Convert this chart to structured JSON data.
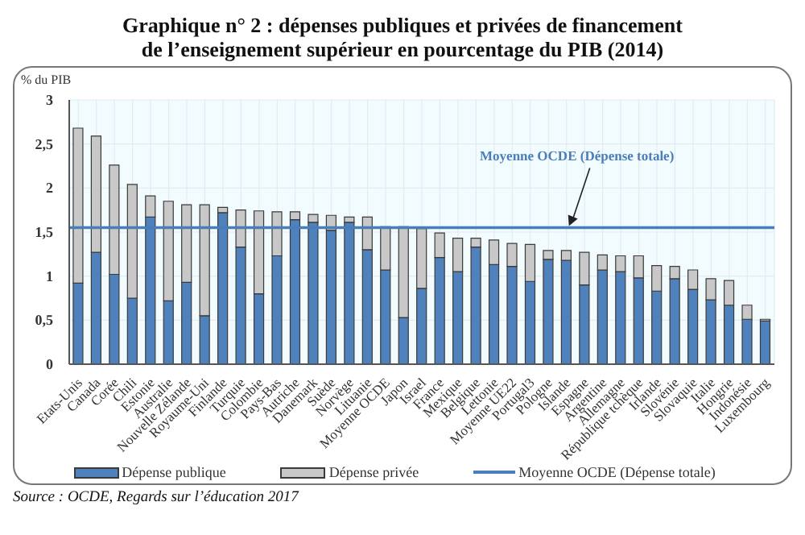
{
  "chart_data": {
    "type": "bar",
    "title": "Graphique n° 2 : dépenses publiques et privées de financement\nde l’enseignement supérieur en pourcentage du PIB (2014)",
    "ylabel": "% du PIB",
    "categories": [
      "Etats-Unis",
      "Canada",
      "Corée",
      "Chili",
      "Estonie",
      "Australie",
      "Nouvelle Zélande",
      "Royaume-Uni",
      "Finlande",
      "Turquie",
      "Colombie",
      "Pays-Bas",
      "Autriche",
      "Danemark",
      "Suède",
      "Norvège",
      "Lituanie",
      "Moyenne OCDE",
      "Japon",
      "Israel",
      "France",
      "Mexique",
      "Belgique",
      "Lettonie",
      "Moyenne UE22",
      "Portugal3",
      "Pologne",
      "Islande",
      "Espagne",
      "Argentine",
      "Allemagne",
      "République tchèque",
      "Irlande",
      "Slovénie",
      "Slovaquie",
      "Italie",
      "Hongrie",
      "Indonésie",
      "Luxembourg"
    ],
    "series": [
      {
        "name": "Dépense publique",
        "color": "#4f81bd",
        "values": [
          0.92,
          1.27,
          1.02,
          0.75,
          1.67,
          0.72,
          0.93,
          0.55,
          1.72,
          1.33,
          0.8,
          1.23,
          1.64,
          1.61,
          1.52,
          1.61,
          1.3,
          1.07,
          0.53,
          0.86,
          1.21,
          1.05,
          1.33,
          1.13,
          1.11,
          0.94,
          1.19,
          1.18,
          0.9,
          1.07,
          1.05,
          0.98,
          0.83,
          0.97,
          0.85,
          0.73,
          0.67,
          0.51,
          0.49
        ]
      },
      {
        "name": "Dépense privée",
        "color": "#c8c8c8",
        "values": [
          1.76,
          1.32,
          1.24,
          1.29,
          0.24,
          1.13,
          0.88,
          1.26,
          0.06,
          0.42,
          0.94,
          0.5,
          0.09,
          0.09,
          0.17,
          0.06,
          0.37,
          0.49,
          1.03,
          0.68,
          0.28,
          0.38,
          0.1,
          0.28,
          0.26,
          0.42,
          0.1,
          0.11,
          0.37,
          0.17,
          0.18,
          0.25,
          0.29,
          0.14,
          0.22,
          0.24,
          0.28,
          0.16,
          0.02
        ]
      }
    ],
    "stacked": true,
    "ylim": [
      0,
      3
    ],
    "yticks": [
      0,
      {
        "value": 0.5,
        "label": "0,5"
      },
      1,
      {
        "value": 1.5,
        "label": "1,5"
      },
      2,
      {
        "value": 2.5,
        "label": "2,5"
      },
      3
    ],
    "ref_lines": [
      {
        "axis": "y",
        "value": 1.55,
        "label": "Moyenne OCDE (Dépense totale)",
        "color": "#4a7ebb"
      }
    ],
    "annotations": [
      "Source : OCDE, Regards sur l’éducation 2017"
    ],
    "grid": true,
    "legend": "bottom"
  }
}
